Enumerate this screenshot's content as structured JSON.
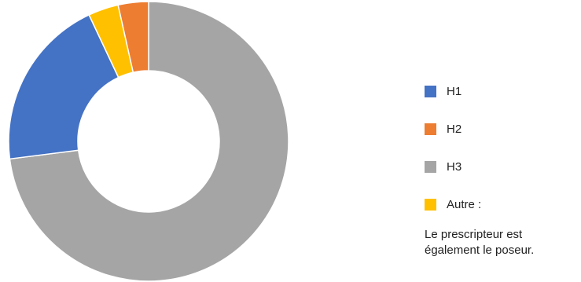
{
  "chart_data": {
    "type": "pie",
    "variant": "donut",
    "title": "",
    "slices": [
      {
        "label": "H3",
        "value": 73,
        "color": "#a5a5a5"
      },
      {
        "label": "H1",
        "value": 20,
        "color": "#4472c4"
      },
      {
        "label": "Autre :",
        "value": 3.5,
        "color": "#ffc000"
      },
      {
        "label": "H2",
        "value": 3.5,
        "color": "#ed7d31"
      }
    ],
    "legend": {
      "position": "right",
      "items": [
        {
          "label": "H1",
          "color": "#4472c4"
        },
        {
          "label": "H2",
          "color": "#ed7d31"
        },
        {
          "label": "H3",
          "color": "#a5a5a5"
        },
        {
          "label": "Autre :",
          "color": "#ffc000"
        }
      ],
      "note": "Le prescripteur est également le poseur."
    }
  }
}
